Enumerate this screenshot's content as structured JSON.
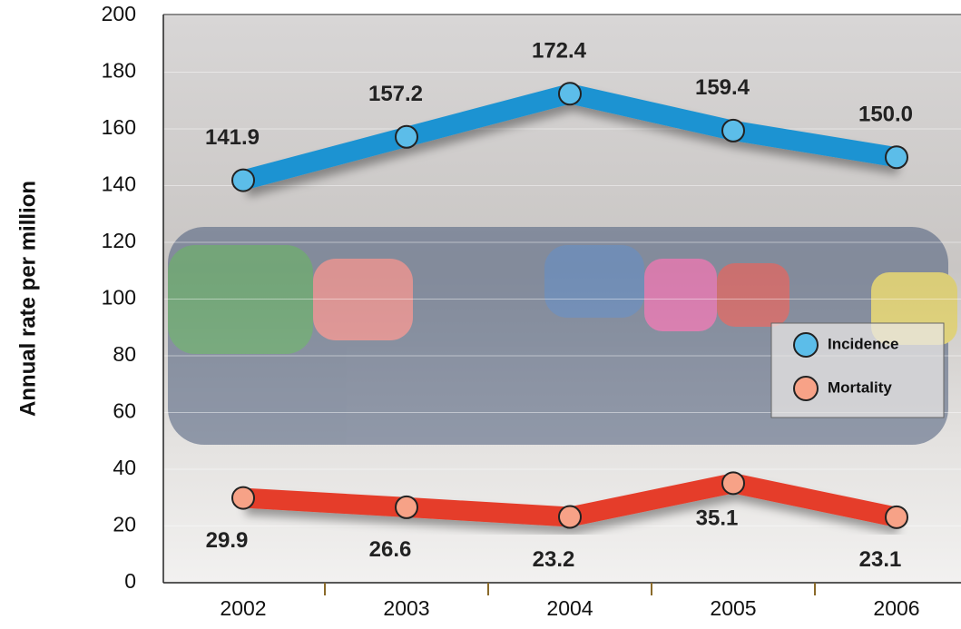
{
  "chart_data": {
    "type": "line",
    "y_label": "Annual rate per million",
    "categories": [
      "2002",
      "2003",
      "2004",
      "2005",
      "2006"
    ],
    "series": [
      {
        "name": "Incidence",
        "color": "#1b93d2",
        "marker_color": "#5cbde9",
        "values": [
          141.9,
          157.2,
          172.4,
          159.4,
          150.0
        ],
        "value_labels": [
          "141.9",
          "157.2",
          "172.4",
          "159.4",
          "150.0"
        ]
      },
      {
        "name": "Mortality",
        "color": "#e53d2c",
        "marker_color": "#f7a287",
        "values": [
          29.9,
          26.6,
          23.2,
          35.1,
          23.1
        ],
        "value_labels": [
          "29.9",
          "26.6",
          "23.2",
          "35.1",
          "23.1"
        ]
      }
    ],
    "ylim": [
      0,
      200
    ],
    "yticks": [
      0,
      20,
      40,
      60,
      80,
      100,
      120,
      140,
      160,
      180,
      200
    ],
    "grid": true
  }
}
